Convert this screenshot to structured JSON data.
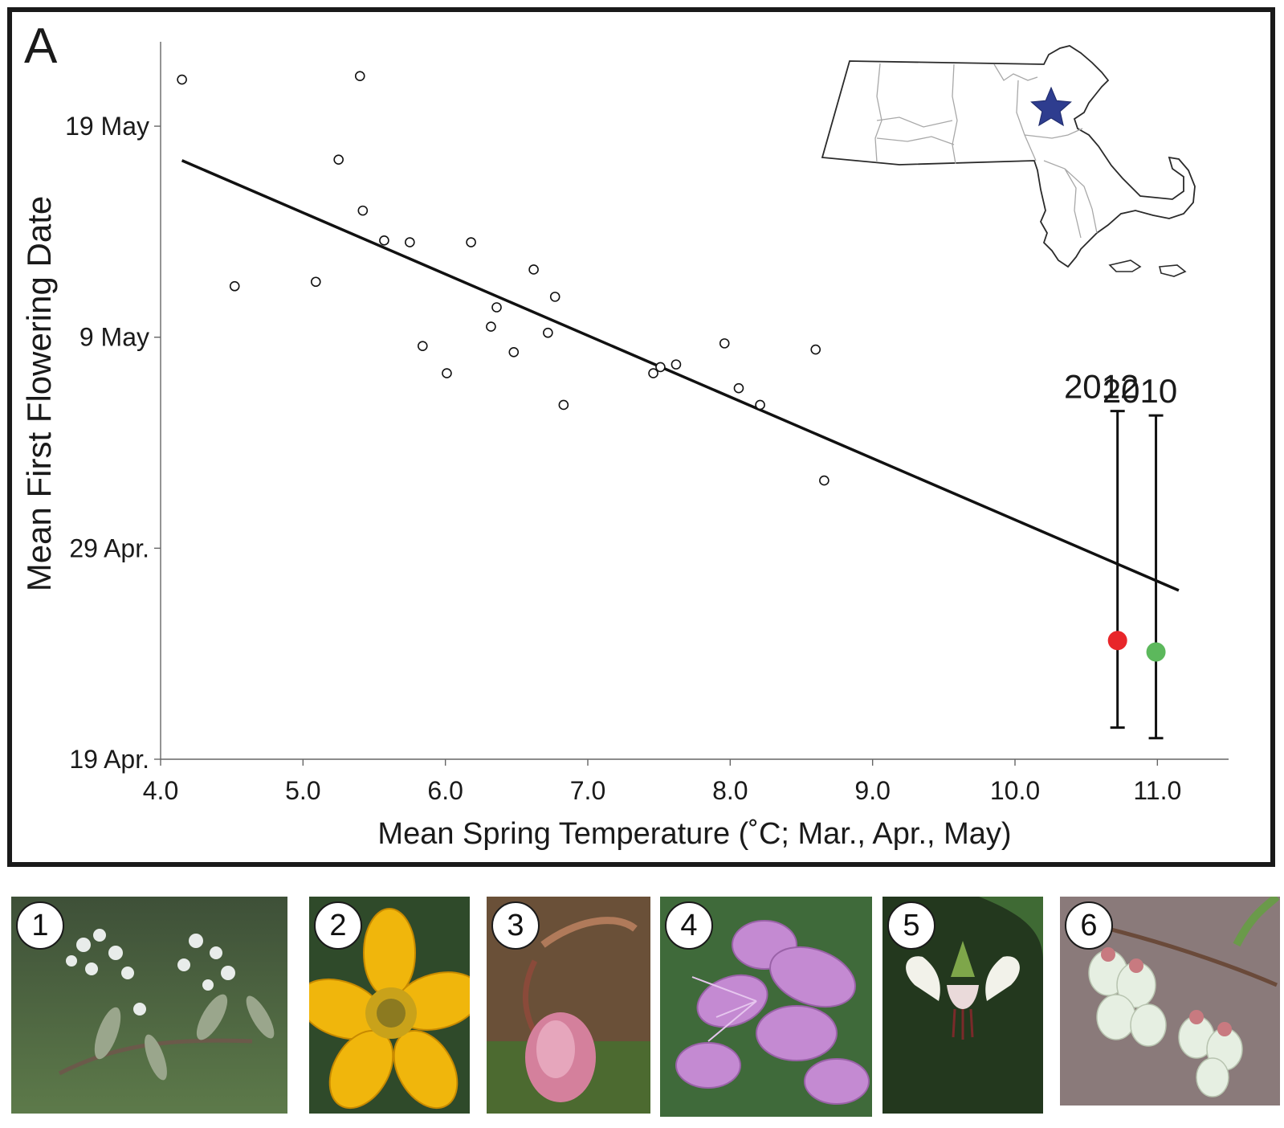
{
  "panel_label": "A",
  "chart_data": {
    "type": "scatter",
    "xlabel": "Mean Spring Temperature (˚C; Mar., Apr., May)",
    "ylabel": "Mean First Flowering Date",
    "xlim": [
      4.0,
      11.5
    ],
    "ylim": [
      "2012-04-19",
      "2012-05-23"
    ],
    "x_ticks": [
      4.0,
      5.0,
      6.0,
      7.0,
      8.0,
      9.0,
      10.0,
      11.0
    ],
    "x_tick_labels": [
      "4.0",
      "5.0",
      "6.0",
      "7.0",
      "8.0",
      "9.0",
      "10.0",
      "11.0"
    ],
    "y_ticks": [
      "2012-04-19",
      "2012-04-29",
      "2012-05-09",
      "2012-05-19"
    ],
    "y_tick_labels": [
      "19 Apr.",
      "29 Apr.",
      "9 May",
      "19 May"
    ],
    "grid": false,
    "points": [
      {
        "x": 4.15,
        "y": "2012-05-21T05:00"
      },
      {
        "x": 4.52,
        "y": "2012-05-11T10:00"
      },
      {
        "x": 5.09,
        "y": "2012-05-11T15:00"
      },
      {
        "x": 5.25,
        "y": "2012-05-17T10:00"
      },
      {
        "x": 5.4,
        "y": "2012-05-21T09:00"
      },
      {
        "x": 5.42,
        "y": "2012-05-15T00:00"
      },
      {
        "x": 5.57,
        "y": "2012-05-13T14:00"
      },
      {
        "x": 5.75,
        "y": "2012-05-13T12:00"
      },
      {
        "x": 5.84,
        "y": "2012-05-08T14:00"
      },
      {
        "x": 6.01,
        "y": "2012-05-07T07:00"
      },
      {
        "x": 6.18,
        "y": "2012-05-13T12:00"
      },
      {
        "x": 6.32,
        "y": "2012-05-09T12:00"
      },
      {
        "x": 6.36,
        "y": "2012-05-10T10:00"
      },
      {
        "x": 6.48,
        "y": "2012-05-08T07:00"
      },
      {
        "x": 6.62,
        "y": "2012-05-12T05:00"
      },
      {
        "x": 6.72,
        "y": "2012-05-09T05:00"
      },
      {
        "x": 6.77,
        "y": "2012-05-10T22:00"
      },
      {
        "x": 6.83,
        "y": "2012-05-05T19:00"
      },
      {
        "x": 7.46,
        "y": "2012-05-07T07:00"
      },
      {
        "x": 7.51,
        "y": "2012-05-07T14:00"
      },
      {
        "x": 7.62,
        "y": "2012-05-07T17:00"
      },
      {
        "x": 7.96,
        "y": "2012-05-08T17:00"
      },
      {
        "x": 8.06,
        "y": "2012-05-06T14:00"
      },
      {
        "x": 8.21,
        "y": "2012-05-05T19:00"
      },
      {
        "x": 8.6,
        "y": "2012-05-08T10:00"
      },
      {
        "x": 8.66,
        "y": "2012-05-02T05:00"
      }
    ],
    "fit_line": [
      {
        "x": 4.15,
        "y": "2012-05-17T09:00"
      },
      {
        "x": 11.15,
        "y": "2012-04-27T00:00"
      }
    ],
    "highlight_points": [
      {
        "name": "2012",
        "x": 10.72,
        "y": "2012-04-24T15:00",
        "error_low": "2012-04-20T12:00",
        "error_high": "2012-05-05T12:00",
        "color": "#e8262a"
      },
      {
        "name": "2010",
        "x": 10.99,
        "y": "2012-04-24T02:00",
        "error_low": "2012-04-20T00:00",
        "error_high": "2012-05-05T07:00",
        "color": "#5cb85c"
      }
    ]
  },
  "inset_map": {
    "marker_icon": "star-icon",
    "marker_color": "#2e3d8f"
  },
  "photos": [
    {
      "number": "1"
    },
    {
      "number": "2"
    },
    {
      "number": "3"
    },
    {
      "number": "4"
    },
    {
      "number": "5"
    },
    {
      "number": "6"
    }
  ]
}
